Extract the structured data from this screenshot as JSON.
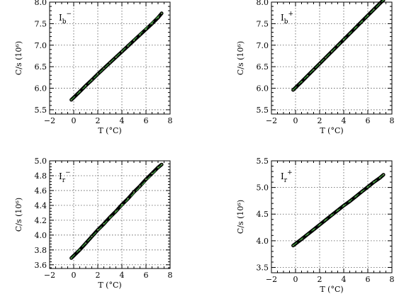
{
  "chart_data": [
    {
      "type": "line",
      "title": "",
      "panel_label": {
        "main": "I",
        "sub": "b",
        "sup": "−"
      },
      "xlabel": "T (°C)",
      "ylabel": "C/s (10⁶)",
      "xlim": [
        -2,
        8
      ],
      "ylim": [
        5.4,
        8.0
      ],
      "xticks": [
        -2,
        0,
        2,
        4,
        6,
        8
      ],
      "yticks": [
        5.5,
        6.0,
        6.5,
        7.0,
        7.5,
        8.0
      ],
      "ytick_labels": [
        "5.5",
        "6.0",
        "6.5",
        "7.0",
        "7.5",
        "8.0"
      ],
      "grid": true,
      "series": [
        {
          "x": [
            -0.2,
            0.5,
            1.0,
            1.5,
            2.0,
            2.5,
            3.0,
            3.5,
            4.0,
            4.5,
            5.0,
            5.5,
            6.0,
            6.5,
            7.0,
            7.3
          ],
          "y": [
            5.73,
            5.92,
            6.06,
            6.19,
            6.33,
            6.46,
            6.59,
            6.72,
            6.85,
            6.98,
            7.11,
            7.24,
            7.37,
            7.5,
            7.64,
            7.74
          ],
          "color": "#000000"
        },
        {
          "x": [
            -0.2,
            7.3
          ],
          "y": [
            5.73,
            7.74
          ],
          "color": "#3fa03f"
        }
      ]
    },
    {
      "type": "line",
      "title": "",
      "panel_label": {
        "main": "I",
        "sub": "b",
        "sup": "+"
      },
      "xlabel": "T (°C)",
      "ylabel": "C/s (10⁶)",
      "xlim": [
        -2,
        8
      ],
      "ylim": [
        5.4,
        8.0
      ],
      "xticks": [
        -2,
        0,
        2,
        4,
        6,
        8
      ],
      "yticks": [
        5.5,
        6.0,
        6.5,
        7.0,
        7.5,
        8.0
      ],
      "ytick_labels": [
        "5.5",
        "6.0",
        "6.5",
        "7.0",
        "7.5",
        "8.0"
      ],
      "grid": true,
      "series": [
        {
          "x": [
            -0.2,
            0.5,
            1.0,
            1.5,
            2.0,
            2.5,
            3.0,
            3.5,
            4.0,
            4.5,
            5.0,
            5.5,
            6.0,
            6.5,
            7.0,
            7.3
          ],
          "y": [
            5.96,
            6.15,
            6.29,
            6.43,
            6.57,
            6.71,
            6.85,
            6.99,
            7.13,
            7.27,
            7.41,
            7.55,
            7.69,
            7.83,
            7.97,
            8.05
          ],
          "color": "#000000"
        },
        {
          "x": [
            -0.2,
            7.3
          ],
          "y": [
            5.96,
            8.05
          ],
          "color": "#3fa03f"
        }
      ]
    },
    {
      "type": "line",
      "title": "",
      "panel_label": {
        "main": "I",
        "sub": "r",
        "sup": "−"
      },
      "xlabel": "T (°C)",
      "ylabel": "C/s (10⁶)",
      "xlim": [
        -2,
        8
      ],
      "ylim": [
        3.55,
        5.0
      ],
      "xticks": [
        -2,
        0,
        2,
        4,
        6,
        8
      ],
      "yticks": [
        3.6,
        3.8,
        4.0,
        4.2,
        4.4,
        4.6,
        4.8,
        5.0
      ],
      "ytick_labels": [
        "3.6",
        "3.8",
        "4.0",
        "4.2",
        "4.4",
        "4.6",
        "4.8",
        "5.0"
      ],
      "grid": true,
      "series": [
        {
          "x": [
            -0.2,
            0.5,
            1.0,
            1.5,
            2.0,
            2.5,
            3.0,
            3.5,
            4.0,
            4.5,
            5.0,
            5.5,
            6.0,
            6.5,
            7.0,
            7.3
          ],
          "y": [
            3.69,
            3.8,
            3.89,
            3.98,
            4.07,
            4.15,
            4.24,
            4.32,
            4.41,
            4.49,
            4.58,
            4.66,
            4.75,
            4.83,
            4.91,
            4.95
          ],
          "color": "#000000"
        },
        {
          "x": [
            -0.2,
            7.3
          ],
          "y": [
            3.69,
            4.95
          ],
          "color": "#3fa03f"
        }
      ]
    },
    {
      "type": "line",
      "title": "",
      "panel_label": {
        "main": "I",
        "sub": "r",
        "sup": "+"
      },
      "xlabel": "T (°C)",
      "ylabel": "C/s (10⁶)",
      "xlim": [
        -2,
        8
      ],
      "ylim": [
        3.4,
        5.5
      ],
      "xticks": [
        -2,
        0,
        2,
        4,
        6,
        8
      ],
      "yticks": [
        3.5,
        4.0,
        4.5,
        5.0,
        5.5
      ],
      "ytick_labels": [
        "3.5",
        "4.0",
        "4.5",
        "5.0",
        "5.5"
      ],
      "grid": true,
      "series": [
        {
          "x": [
            -0.2,
            0.5,
            1.0,
            1.5,
            2.0,
            2.5,
            3.0,
            3.5,
            4.0,
            4.5,
            5.0,
            5.5,
            6.0,
            6.5,
            7.0,
            7.3
          ],
          "y": [
            3.91,
            4.03,
            4.12,
            4.21,
            4.3,
            4.39,
            4.48,
            4.57,
            4.66,
            4.74,
            4.83,
            4.92,
            5.01,
            5.1,
            5.18,
            5.24
          ],
          "color": "#000000"
        },
        {
          "x": [
            -0.2,
            7.3
          ],
          "y": [
            3.91,
            5.24
          ],
          "color": "#3fa03f"
        }
      ]
    }
  ]
}
